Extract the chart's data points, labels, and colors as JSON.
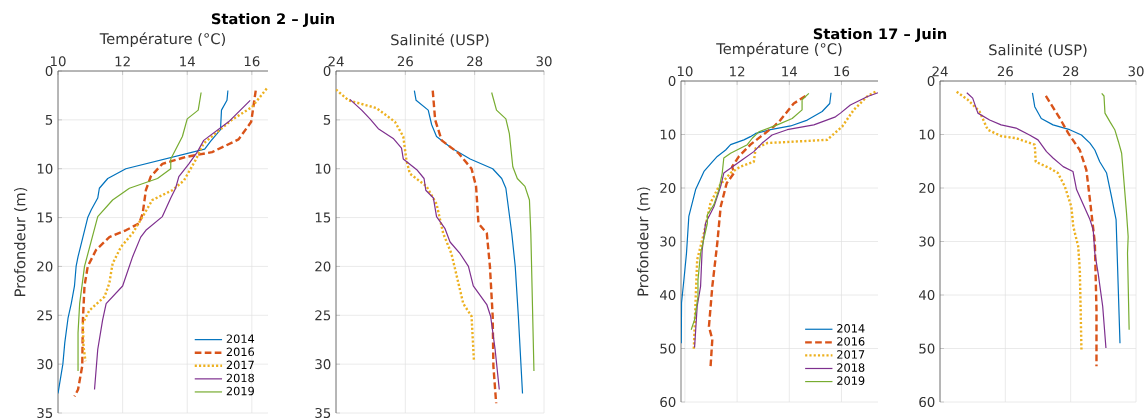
{
  "chart_data": [
    {
      "type": "line",
      "title": "Station 2 – Juin",
      "xlabel": "Température (°C)",
      "ylabel": "Profondeur (m)",
      "xlim": [
        10,
        16.5
      ],
      "xticks": [
        10,
        12,
        14,
        16
      ],
      "ylim": [
        35,
        0
      ],
      "yticks": [
        0,
        5,
        10,
        15,
        20,
        25,
        30,
        35
      ],
      "grid": true,
      "legend": "bottom right",
      "series": [
        {
          "name": "2014",
          "color": "#0072bd",
          "line_style": "solid",
          "x": [
            15.26,
            15.23,
            15.06,
            15.03,
            14.72,
            14.54,
            12.1,
            11.54,
            11.28,
            11.23,
            11.03,
            10.92,
            10.77,
            10.62,
            10.56,
            10.51,
            10.41,
            10.31,
            10.21,
            10.15,
            10.0
          ],
          "values": [
            2,
            3,
            4,
            6,
            7.2,
            8,
            10,
            11,
            12,
            13,
            14.2,
            15,
            17,
            19,
            20,
            22,
            23.8,
            25.3,
            27.8,
            30,
            33
          ]
        },
        {
          "name": "2016",
          "color": "#d95319",
          "line_style": "dashed",
          "x": [
            16.12,
            15.98,
            15.59,
            14.77,
            13.95,
            13.23,
            12.87,
            12.72,
            12.62,
            12.51,
            12.1,
            11.59,
            11.18,
            10.92,
            10.82,
            10.77,
            10.75,
            10.62,
            10.51
          ],
          "values": [
            2,
            5.2,
            7,
            8.3,
            8.8,
            9.5,
            10.8,
            12.2,
            14.6,
            15.6,
            16.3,
            17,
            18.3,
            20,
            22,
            25.5,
            30.2,
            32.6,
            33.3
          ]
        },
        {
          "name": "2017",
          "color": "#edb120",
          "line_style": "dotted",
          "x": [
            16.46,
            16.0,
            15.38,
            14.51,
            14.26,
            13.9,
            13.54,
            12.92,
            12.62,
            12.31,
            11.95,
            11.69,
            11.59,
            11.44,
            10.97,
            10.77,
            10.79,
            10.85
          ],
          "values": [
            1.8,
            3.7,
            5,
            7.4,
            9.1,
            11.2,
            12.2,
            13.2,
            14.9,
            16.6,
            18,
            19.7,
            21.7,
            23.1,
            24.5,
            25.8,
            28.2,
            29.7
          ]
        },
        {
          "name": "2018",
          "color": "#7e2f8e",
          "line_style": "solid",
          "x": [
            15.95,
            15.28,
            14.51,
            14.31,
            14.05,
            13.74,
            13.64,
            13.49,
            13.23,
            12.72,
            12.56,
            12.31,
            12.0,
            11.49,
            11.38,
            11.23,
            11.13
          ],
          "values": [
            3,
            5.2,
            7.1,
            8.3,
            9.5,
            10.8,
            12,
            13,
            14.9,
            16.3,
            17,
            19,
            22,
            23.8,
            25.5,
            28.5,
            32.6
          ]
        },
        {
          "name": "2019",
          "color": "#77ac30",
          "line_style": "solid",
          "x": [
            14.43,
            14.34,
            14.0,
            13.85,
            13.49,
            13.49,
            13.08,
            12.21,
            11.69,
            11.23,
            10.82,
            10.67,
            10.62,
            10.62
          ],
          "values": [
            2.2,
            4,
            4.9,
            6.7,
            9,
            10,
            11,
            12,
            13.2,
            14.9,
            20,
            23.8,
            26.8,
            30.7
          ]
        }
      ]
    },
    {
      "type": "line",
      "xlabel": "Salinité (USP)",
      "xlim": [
        24,
        30
      ],
      "xticks": [
        24,
        26,
        28,
        30
      ],
      "ylim": [
        35,
        0
      ],
      "yticks": [
        0,
        5,
        10,
        15,
        20,
        25,
        30,
        35
      ],
      "grid": true,
      "series": [
        {
          "color": "#0072bd",
          "line_style": "solid",
          "x": [
            26.26,
            26.31,
            26.66,
            26.76,
            26.9,
            27.34,
            27.87,
            28.52,
            28.78,
            28.9,
            29.07,
            29.17,
            29.26,
            29.38
          ],
          "values": [
            2,
            3,
            4,
            5.5,
            6.7,
            7.9,
            9,
            10,
            11,
            12,
            16.6,
            20,
            25.1,
            33
          ]
        },
        {
          "color": "#d95319",
          "line_style": "dashed",
          "x": [
            26.79,
            26.86,
            27.05,
            27.53,
            27.91,
            28.04,
            28.11,
            28.35,
            28.44,
            28.52,
            28.54,
            28.62
          ],
          "values": [
            2,
            5,
            7.1,
            8.4,
            10,
            11.8,
            15.6,
            16.6,
            20,
            25.1,
            30.2,
            34
          ]
        },
        {
          "color": "#edb120",
          "line_style": "dotted",
          "x": [
            24.0,
            24.36,
            25.17,
            25.7,
            25.94,
            26.03,
            26.13,
            26.61,
            26.9,
            27.09,
            27.33,
            27.53,
            27.67,
            27.91,
            27.98
          ],
          "values": [
            1.9,
            3,
            3.8,
            5.2,
            6.7,
            9.1,
            10.5,
            11.8,
            13.6,
            16.6,
            18.7,
            21.7,
            23.8,
            25.1,
            29.7
          ]
        },
        {
          "color": "#7e2f8e",
          "line_style": "solid",
          "x": [
            24.4,
            24.74,
            24.98,
            25.22,
            25.65,
            25.89,
            25.94,
            26.33,
            26.54,
            26.59,
            26.81,
            26.9,
            27.14,
            27.29,
            27.58,
            27.82,
            27.96,
            28.35,
            28.46,
            28.59,
            28.71
          ],
          "values": [
            2.9,
            4,
            4.9,
            5.9,
            6.9,
            7.9,
            9,
            10.1,
            11,
            12.2,
            13,
            14.9,
            16.1,
            17.5,
            18.7,
            20,
            22,
            23.9,
            25.1,
            28.5,
            32.6
          ]
        },
        {
          "color": "#77ac30",
          "line_style": "solid",
          "x": [
            28.49,
            28.63,
            28.9,
            29.0,
            29.1,
            29.23,
            29.45,
            29.58,
            29.62,
            29.71
          ],
          "values": [
            2.2,
            4,
            4.9,
            6.4,
            9.8,
            11,
            11.8,
            13.2,
            16.6,
            30.7
          ]
        }
      ]
    },
    {
      "type": "line",
      "title": "Station 17 – Juin",
      "xlabel": "Température (°C)",
      "ylabel": "Profondeur (m)",
      "xlim": [
        9.85,
        17.4
      ],
      "xticks": [
        10,
        12,
        14,
        16
      ],
      "ylim": [
        60,
        0
      ],
      "yticks": [
        0,
        10,
        20,
        30,
        40,
        50,
        60
      ],
      "grid": true,
      "legend": "bottom right",
      "series": [
        {
          "name": "2014",
          "color": "#0072bd",
          "line_style": "solid",
          "x": [
            15.6,
            15.55,
            15.26,
            14.69,
            14.05,
            13.28,
            12.71,
            12.51,
            12.26,
            11.75,
            11.56,
            11.24,
            11.05,
            10.73,
            10.41,
            10.15,
            10.06,
            9.96,
            9.87,
            9.86
          ],
          "values": [
            2.2,
            4.2,
            5.7,
            7.3,
            8.4,
            9.1,
            9.8,
            10.4,
            11,
            11.9,
            12.9,
            14.1,
            15.1,
            16.9,
            20.3,
            25.3,
            32.2,
            37.2,
            41.5,
            49
          ]
        },
        {
          "name": "2016",
          "color": "#d95319",
          "line_style": "dashed",
          "x": [
            14.62,
            14.17,
            13.66,
            13.41,
            12.9,
            12.51,
            12.07,
            11.81,
            11.88,
            11.6,
            11.37,
            11.24,
            11.05,
            10.92,
            11.05,
            10.98
          ],
          "values": [
            2.8,
            4.2,
            7.3,
            8.5,
            10.4,
            11.9,
            14.1,
            16,
            17.2,
            19.1,
            23.5,
            30.3,
            38.4,
            45.9,
            48.3,
            53.6
          ]
        },
        {
          "name": "2017",
          "color": "#edb120",
          "line_style": "dotted",
          "x": [
            17.3,
            16.98,
            16.47,
            16.03,
            15.45,
            13.15,
            12.71,
            12.64,
            12.13,
            11.75,
            11.3,
            10.98,
            10.73,
            10.47,
            10.41,
            10.34
          ],
          "values": [
            2,
            2.9,
            5.4,
            8.5,
            11,
            11.6,
            12.6,
            15.1,
            16,
            17.2,
            19.7,
            22.8,
            28.4,
            33.4,
            40.9,
            50.2
          ]
        },
        {
          "name": "2018",
          "color": "#7e2f8e",
          "line_style": "solid",
          "x": [
            17.4,
            17.0,
            16.34,
            15.96,
            15.77,
            14.94,
            13.92,
            13.34,
            12.96,
            12.64,
            12.2,
            11.49,
            11.37,
            11.11,
            10.79,
            10.66,
            10.6,
            10.47,
            10.37
          ],
          "values": [
            2.2,
            2.9,
            4.5,
            6,
            6.7,
            8.2,
            9.1,
            10.1,
            11.6,
            13.2,
            14.7,
            17.2,
            19.7,
            23.5,
            26.6,
            31.6,
            38.4,
            42.1,
            49.8
          ]
        },
        {
          "name": "2019",
          "color": "#77ac30",
          "line_style": "solid",
          "x": [
            14.75,
            14.49,
            14.49,
            14.11,
            13.54,
            12.83,
            12.58,
            12.39,
            11.75,
            11.49,
            11.43,
            11.3,
            11.11,
            10.86,
            10.86,
            10.6,
            10.5,
            10.5,
            10.37,
            10.24
          ],
          "values": [
            2.3,
            3.5,
            5.4,
            7,
            8.2,
            9.5,
            10.7,
            11.9,
            13.5,
            14.4,
            17.2,
            20.3,
            23.1,
            25,
            26.6,
            32.2,
            37.2,
            40.3,
            44.6,
            46.5
          ]
        }
      ]
    },
    {
      "type": "line",
      "xlabel": "Salinité (USP)",
      "xlim": [
        24,
        30
      ],
      "xticks": [
        24,
        26,
        28,
        30
      ],
      "ylim": [
        60,
        0
      ],
      "yticks": [
        0,
        10,
        20,
        30,
        40,
        50,
        60
      ],
      "grid": true,
      "series": [
        {
          "color": "#0072bd",
          "line_style": "solid",
          "x": [
            26.83,
            26.9,
            27.1,
            27.46,
            27.97,
            28.33,
            28.59,
            28.74,
            28.89,
            29.1,
            29.25,
            29.39,
            29.51
          ],
          "values": [
            2.2,
            4.8,
            7,
            8.2,
            9.1,
            10.1,
            11.6,
            12.9,
            15.1,
            17.2,
            21.6,
            25.9,
            49
          ]
        },
        {
          "color": "#d95319",
          "line_style": "dashed",
          "x": [
            27.24,
            27.67,
            27.93,
            28.28,
            28.48,
            28.59,
            28.74,
            28.79,
            28.79
          ],
          "values": [
            2.8,
            7,
            9.8,
            12.9,
            16.6,
            22.2,
            30.3,
            42.7,
            53.3
          ]
        },
        {
          "color": "#edb120",
          "line_style": "dotted",
          "x": [
            24.51,
            24.85,
            25.21,
            25.46,
            25.87,
            26.33,
            26.9,
            26.93,
            27.36,
            27.61,
            27.82,
            28.02,
            28.08,
            28.23,
            28.28,
            28.33
          ],
          "values": [
            2,
            3.5,
            5.7,
            9.1,
            10.3,
            10.7,
            11.9,
            15.1,
            16.3,
            17.2,
            19.7,
            23.5,
            27.2,
            30.9,
            35.3,
            50.2
          ]
        },
        {
          "color": "#7e2f8e",
          "line_style": "solid",
          "x": [
            24.82,
            25.0,
            25.16,
            25.52,
            25.87,
            26.33,
            26.74,
            27.0,
            27.26,
            27.46,
            27.77,
            28.07,
            28.18,
            28.59,
            28.69,
            28.74,
            28.84,
            28.98,
            29.08
          ],
          "values": [
            2.2,
            3.2,
            6,
            7.3,
            8.2,
            8.8,
            10.1,
            11,
            13.2,
            14.4,
            16,
            16.9,
            20.3,
            25.9,
            27.8,
            32.2,
            35.9,
            42.1,
            49.9
          ]
        },
        {
          "color": "#77ac30",
          "line_style": "solid",
          "x": [
            28.95,
            29.02,
            29.05,
            29.2,
            29.35,
            29.46,
            29.56,
            29.61,
            29.71,
            29.76,
            29.74,
            29.79
          ],
          "values": [
            2.3,
            2.8,
            6,
            7.6,
            9.1,
            11.3,
            13.5,
            17.2,
            24.7,
            29.1,
            32.2,
            46.5
          ]
        }
      ]
    }
  ]
}
